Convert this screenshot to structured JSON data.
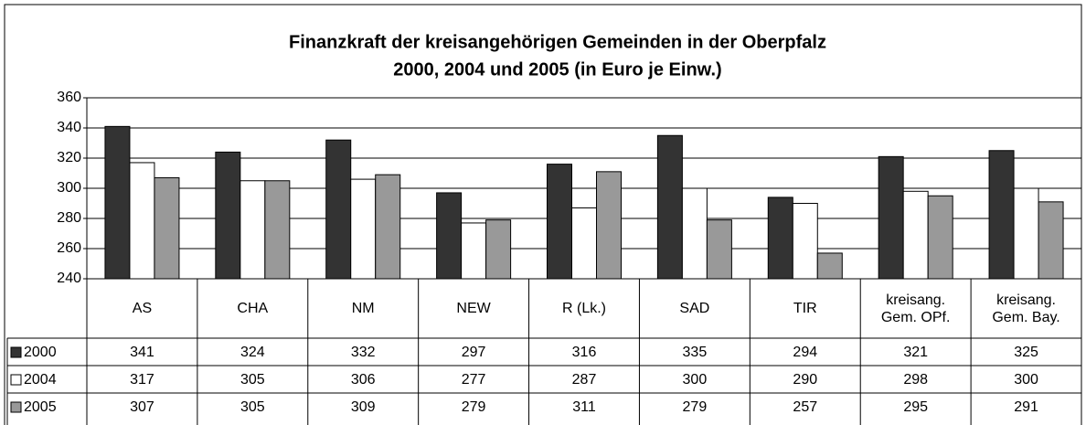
{
  "chart_data": {
    "type": "bar",
    "title": "Finanzkraft der kreisangehörigen Gemeinden in der Oberpfalz",
    "subtitle": "2000, 2004 und 2005 (in Euro je Einw.)",
    "categories": [
      "AS",
      "CHA",
      "NM",
      "NEW",
      "R (Lk.)",
      "SAD",
      "TIR",
      "kreisang. Gem. OPf.",
      "kreisang. Gem. Bay."
    ],
    "series": [
      {
        "name": "2000",
        "color": "#333333",
        "values": [
          341,
          324,
          332,
          297,
          316,
          335,
          294,
          321,
          325
        ]
      },
      {
        "name": "2004",
        "color": "#ffffff",
        "values": [
          317,
          305,
          306,
          277,
          287,
          300,
          290,
          298,
          300
        ]
      },
      {
        "name": "2005",
        "color": "#999999",
        "values": [
          307,
          305,
          309,
          279,
          311,
          279,
          257,
          295,
          291
        ]
      }
    ],
    "ylim": [
      240,
      360
    ],
    "yticks": [
      240,
      260,
      280,
      300,
      320,
      340,
      360
    ],
    "grid": true
  }
}
